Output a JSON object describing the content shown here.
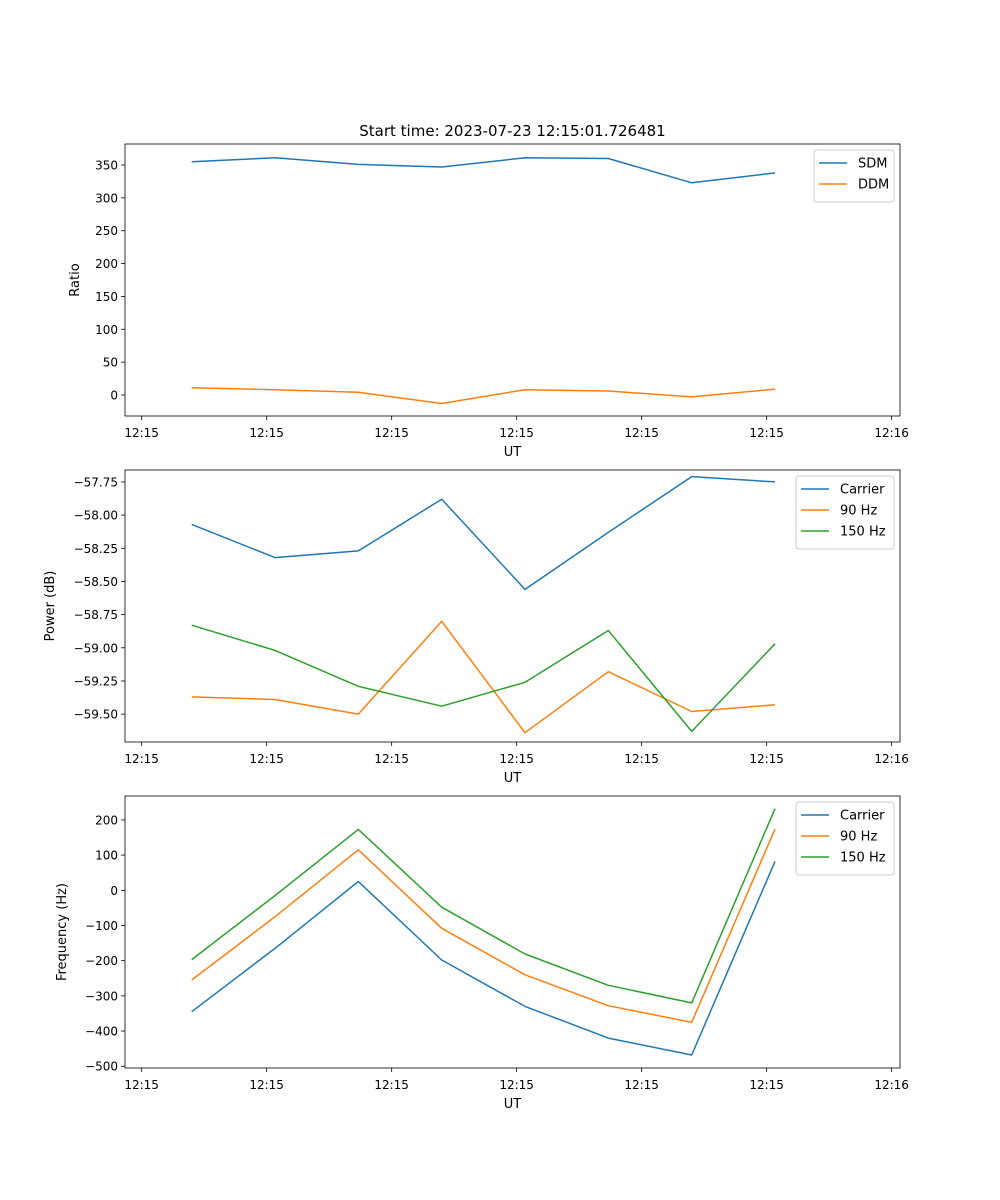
{
  "figure_title": "Start time: 2023-07-23 12:15:01.726481",
  "chart_data": [
    {
      "type": "line",
      "title": "Start time: 2023-07-23 12:15:01.726481",
      "xlabel": "UT",
      "ylabel": "Ratio",
      "x": [
        1,
        2,
        3,
        4,
        5,
        6,
        7,
        8
      ],
      "xlim": [
        0.2,
        9.5
      ],
      "xticks": [
        0.4,
        1.9,
        3.4,
        4.9,
        6.4,
        7.9,
        9.4
      ],
      "xtick_labels": [
        "12:15",
        "12:15",
        "12:15",
        "12:15",
        "12:15",
        "12:15",
        "12:16"
      ],
      "ylim": [
        -32,
        382
      ],
      "yticks": [
        0,
        50,
        100,
        150,
        200,
        250,
        300,
        350
      ],
      "ytick_labels": [
        "0",
        "50",
        "100",
        "150",
        "200",
        "250",
        "300",
        "350"
      ],
      "legend_position": "upper right",
      "series": [
        {
          "name": "SDM",
          "color": "#1f77b4",
          "values": [
            355,
            361,
            351,
            347,
            361,
            360,
            323,
            338
          ]
        },
        {
          "name": "DDM",
          "color": "#ff7f0e",
          "values": [
            11,
            8,
            4,
            -13,
            8,
            6,
            -3,
            9
          ]
        }
      ]
    },
    {
      "type": "line",
      "title": "",
      "xlabel": "UT",
      "ylabel": "Power (dB)",
      "x": [
        1,
        2,
        3,
        4,
        5,
        6,
        7,
        8
      ],
      "xlim": [
        0.2,
        9.5
      ],
      "xticks": [
        0.4,
        1.9,
        3.4,
        4.9,
        6.4,
        7.9,
        9.4
      ],
      "xtick_labels": [
        "12:15",
        "12:15",
        "12:15",
        "12:15",
        "12:15",
        "12:15",
        "12:16"
      ],
      "ylim": [
        -59.71,
        -57.66
      ],
      "yticks": [
        -59.5,
        -59.25,
        -59.0,
        -58.75,
        -58.5,
        -58.25,
        -58.0,
        -57.75
      ],
      "ytick_labels": [
        "−59.50",
        "−59.25",
        "−59.00",
        "−58.75",
        "−58.50",
        "−58.25",
        "−58.00",
        "−57.75"
      ],
      "legend_position": "upper right",
      "series": [
        {
          "name": "Carrier",
          "color": "#1f77b4",
          "values": [
            -58.07,
            -58.32,
            -58.27,
            -57.88,
            -58.56,
            -58.13,
            -57.71,
            -57.75
          ]
        },
        {
          "name": "90 Hz",
          "color": "#ff7f0e",
          "values": [
            -59.37,
            -59.39,
            -59.5,
            -58.8,
            -59.64,
            -59.18,
            -59.48,
            -59.43
          ]
        },
        {
          "name": "150 Hz",
          "color": "#2ca02c",
          "values": [
            -58.83,
            -59.02,
            -59.29,
            -59.44,
            -59.26,
            -58.87,
            -59.63,
            -58.97
          ]
        }
      ]
    },
    {
      "type": "line",
      "title": "",
      "xlabel": "UT",
      "ylabel": "Frequency (Hz)",
      "x": [
        1,
        2,
        3,
        4,
        5,
        6,
        7,
        8
      ],
      "xlim": [
        0.2,
        9.5
      ],
      "xticks": [
        0.4,
        1.9,
        3.4,
        4.9,
        6.4,
        7.9,
        9.4
      ],
      "xtick_labels": [
        "12:15",
        "12:15",
        "12:15",
        "12:15",
        "12:15",
        "12:15",
        "12:16"
      ],
      "ylim": [
        -505,
        268
      ],
      "yticks": [
        -500,
        -400,
        -300,
        -200,
        -100,
        0,
        100,
        200
      ],
      "ytick_labels": [
        "−500",
        "−400",
        "−300",
        "−200",
        "−100",
        "0",
        "100",
        "200"
      ],
      "legend_position": "upper right",
      "series": [
        {
          "name": "Carrier",
          "color": "#1f77b4",
          "values": [
            -345,
            -165,
            25,
            -198,
            -330,
            -420,
            -468,
            82
          ]
        },
        {
          "name": "90 Hz",
          "color": "#ff7f0e",
          "values": [
            -255,
            -75,
            115,
            -108,
            -240,
            -328,
            -375,
            174
          ]
        },
        {
          "name": "150 Hz",
          "color": "#2ca02c",
          "values": [
            -197,
            -15,
            173,
            -48,
            -181,
            -270,
            -320,
            232
          ]
        }
      ]
    }
  ]
}
